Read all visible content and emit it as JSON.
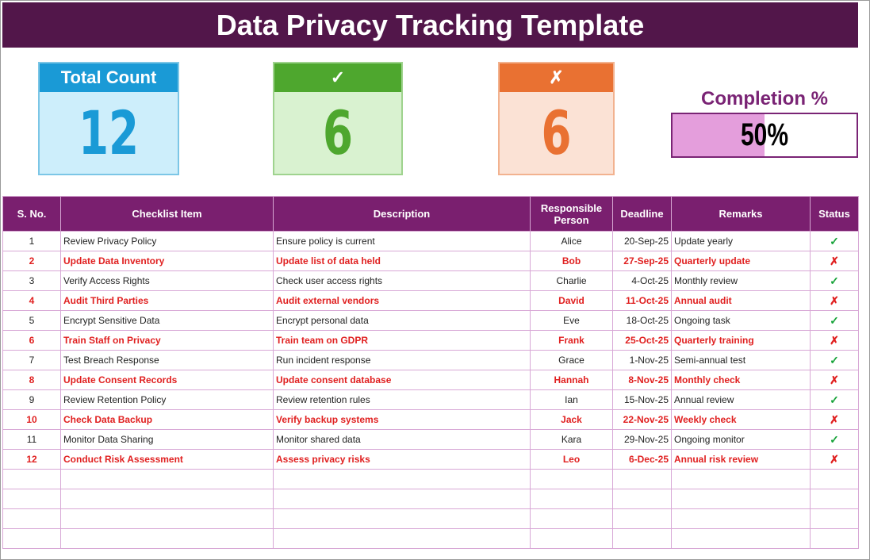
{
  "title": "Data Privacy Tracking Template",
  "cards": {
    "total": {
      "label": "Total Count",
      "value": "12"
    },
    "done": {
      "label": "✓",
      "value": "6"
    },
    "pending": {
      "label": "✗",
      "value": "6"
    }
  },
  "completion": {
    "label": "Completion %",
    "value_text": "50%",
    "percent": 50
  },
  "colors": {
    "title_bg": "#52164a",
    "header_bg": "#7a1f6f",
    "blue": "#1a9ad6",
    "green": "#4ea72e",
    "orange": "#e97132",
    "pending_text": "#e02020"
  },
  "table": {
    "headers": [
      "S. No.",
      "Checklist Item",
      "Description",
      "Responsible Person",
      "Deadline",
      "Remarks",
      "Status"
    ],
    "rows": [
      [
        "1",
        "Review Privacy Policy",
        "Ensure policy is current",
        "Alice",
        "20-Sep-25",
        "Update yearly",
        "✓"
      ],
      [
        "2",
        "Update Data Inventory",
        "Update list of data held",
        "Bob",
        "27-Sep-25",
        "Quarterly update",
        "✗"
      ],
      [
        "3",
        "Verify Access Rights",
        "Check user access rights",
        "Charlie",
        "4-Oct-25",
        "Monthly review",
        "✓"
      ],
      [
        "4",
        "Audit Third Parties",
        "Audit external vendors",
        "David",
        "11-Oct-25",
        "Annual audit",
        "✗"
      ],
      [
        "5",
        "Encrypt Sensitive Data",
        "Encrypt personal data",
        "Eve",
        "18-Oct-25",
        "Ongoing task",
        "✓"
      ],
      [
        "6",
        "Train Staff on Privacy",
        "Train team on GDPR",
        "Frank",
        "25-Oct-25",
        "Quarterly training",
        "✗"
      ],
      [
        "7",
        "Test Breach Response",
        "Run incident response",
        "Grace",
        "1-Nov-25",
        "Semi-annual test",
        "✓"
      ],
      [
        "8",
        "Update Consent Records",
        "Update consent database",
        "Hannah",
        "8-Nov-25",
        "Monthly check",
        "✗"
      ],
      [
        "9",
        "Review Retention Policy",
        "Review retention rules",
        "Ian",
        "15-Nov-25",
        "Annual review",
        "✓"
      ],
      [
        "10",
        "Check Data Backup",
        "Verify backup systems",
        "Jack",
        "22-Nov-25",
        "Weekly check",
        "✗"
      ],
      [
        "11",
        "Monitor Data Sharing",
        "Monitor shared data",
        "Kara",
        "29-Nov-25",
        "Ongoing monitor",
        "✓"
      ],
      [
        "12",
        "Conduct Risk Assessment",
        "Assess privacy risks",
        "Leo",
        "6-Dec-25",
        "Annual risk review",
        "✗"
      ]
    ]
  }
}
